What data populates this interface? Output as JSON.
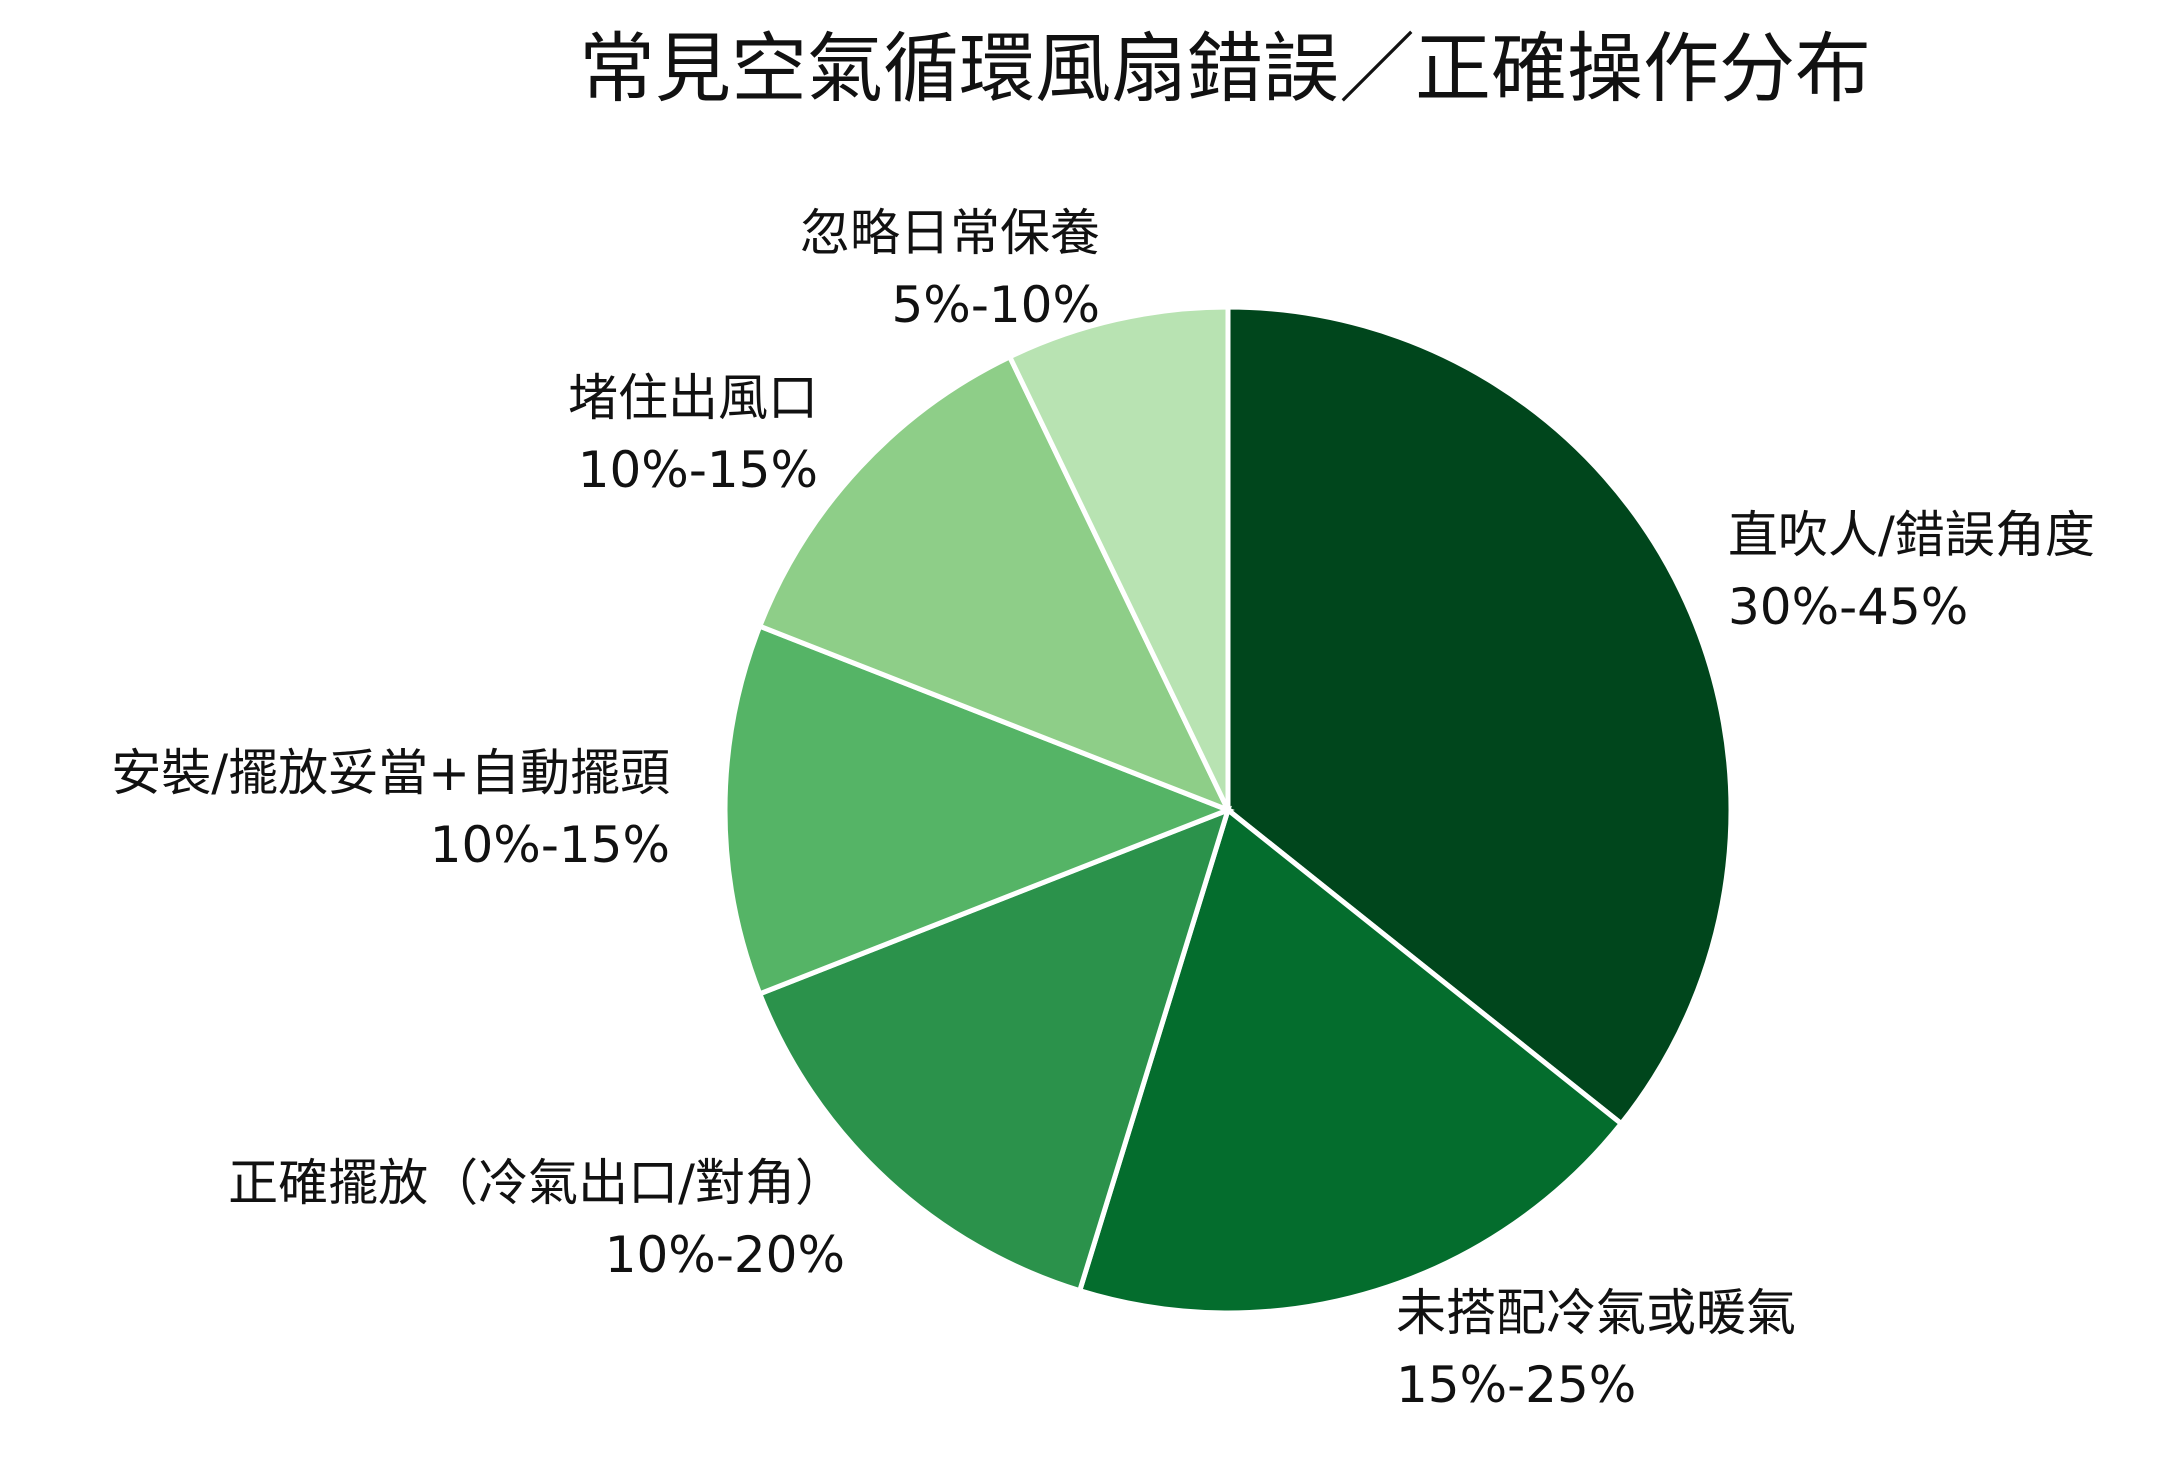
{
  "chart_data": {
    "type": "pie",
    "title": "常見空氣循環風扇錯誤／正確操作分布",
    "slices": [
      {
        "name": "直吹人/錯誤角度",
        "range": "30%-45%",
        "value": 37.5,
        "color": "#00461c"
      },
      {
        "name": "未搭配冷氣或暖氣",
        "range": "15%-25%",
        "value": 20,
        "color": "#046d2d"
      },
      {
        "name": "正確擺放（冷氣出口/對角）",
        "range": "10%-20%",
        "value": 15,
        "color": "#2b924b"
      },
      {
        "name": "安裝/擺放妥當+自動擺頭",
        "range": "10%-15%",
        "value": 12.5,
        "color": "#55b466"
      },
      {
        "name": "堵住出風口",
        "range": "10%-15%",
        "value": 12.5,
        "color": "#8ece88"
      },
      {
        "name": "忽略日常保養",
        "range": "5%-10%",
        "value": 7.5,
        "color": "#b8e3b2"
      }
    ],
    "start_angle": "12 o'clock",
    "direction": "clockwise",
    "legend": "none"
  }
}
